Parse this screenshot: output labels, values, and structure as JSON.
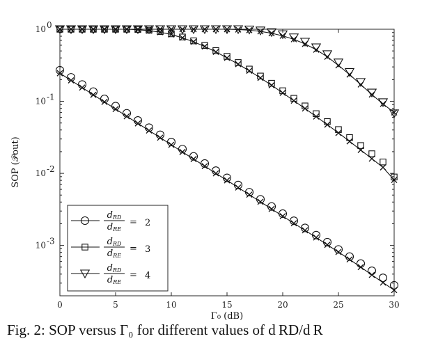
{
  "chart_data": {
    "type": "line",
    "xlabel": "Γ₀ (dB)",
    "ylabel": "SOP (𝒫out)",
    "xlim": [
      0,
      30
    ],
    "ylim": [
      0.0002,
      1
    ],
    "yscale": "log",
    "x_ticks": [
      0,
      5,
      10,
      15,
      20,
      25,
      30
    ],
    "y_ticks": [
      {
        "value": 1,
        "base": "10",
        "exp": "0"
      },
      {
        "value": 0.1,
        "base": "10",
        "exp": "-1"
      },
      {
        "value": 0.01,
        "base": "10",
        "exp": "-2"
      },
      {
        "value": 0.001,
        "base": "10",
        "exp": "-3"
      }
    ],
    "legend_position": "bottom-left",
    "x": [
      0,
      1,
      2,
      3,
      4,
      5,
      6,
      7,
      8,
      9,
      10,
      11,
      12,
      13,
      14,
      15,
      16,
      17,
      18,
      19,
      20,
      21,
      22,
      23,
      24,
      25,
      26,
      27,
      28,
      29,
      30
    ],
    "series": [
      {
        "legend": {
          "num": "RD",
          "den": "RE",
          "value": "2"
        },
        "marker": "circle",
        "analytical": [
          0.27,
          0.215,
          0.171,
          0.136,
          0.108,
          0.0858,
          0.0682,
          0.0542,
          0.0431,
          0.0343,
          0.0272,
          0.0217,
          0.0172,
          0.0137,
          0.0109,
          0.00866,
          0.00689,
          0.00548,
          0.00436,
          0.00347,
          0.00276,
          0.0022,
          0.00175,
          0.00139,
          0.00111,
          0.00088,
          0.0007,
          0.00056,
          0.000445,
          0.000355,
          0.00028
        ],
        "simulated": [
          0.245,
          0.195,
          0.155,
          0.123,
          0.098,
          0.078,
          0.062,
          0.0494,
          0.0393,
          0.0313,
          0.0249,
          0.0198,
          0.0158,
          0.0126,
          0.01,
          0.008,
          0.00636,
          0.00506,
          0.00403,
          0.00321,
          0.00255,
          0.00203,
          0.00162,
          0.00129,
          0.00102,
          0.00081,
          0.00064,
          0.0005,
          0.00039,
          0.000305,
          0.00024
        ]
      },
      {
        "legend": {
          "num": "RD",
          "den": "RE",
          "value": "3"
        },
        "marker": "square",
        "analytical": [
          1,
          1,
          1,
          1,
          1,
          1,
          1,
          0.995,
          0.97,
          0.93,
          0.865,
          0.78,
          0.69,
          0.595,
          0.505,
          0.42,
          0.345,
          0.28,
          0.224,
          0.178,
          0.14,
          0.11,
          0.0862,
          0.0673,
          0.0523,
          0.0405,
          0.0314,
          0.0243,
          0.0187,
          0.0144,
          0.0089
        ],
        "simulated": [
          1,
          1,
          1,
          1,
          1,
          1,
          1,
          0.985,
          0.955,
          0.91,
          0.845,
          0.76,
          0.67,
          0.575,
          0.485,
          0.4,
          0.328,
          0.265,
          0.211,
          0.167,
          0.131,
          0.102,
          0.0794,
          0.0615,
          0.0474,
          0.0364,
          0.0278,
          0.0211,
          0.016,
          0.0121,
          0.0081
        ]
      },
      {
        "legend": {
          "num": "RD",
          "den": "RE",
          "value": "4"
        },
        "marker": "triangle-down",
        "analytical": [
          1,
          1,
          1,
          1,
          1,
          1,
          1,
          1,
          1,
          1,
          1,
          1,
          1,
          1,
          1,
          1,
          1,
          0.99,
          0.96,
          0.91,
          0.85,
          0.77,
          0.67,
          0.56,
          0.45,
          0.345,
          0.255,
          0.185,
          0.132,
          0.097,
          0.068
        ],
        "simulated": [
          1,
          1,
          1,
          1,
          1,
          1,
          1,
          1,
          1,
          1,
          1,
          1,
          1,
          1,
          1,
          1,
          0.99,
          0.97,
          0.935,
          0.88,
          0.81,
          0.725,
          0.625,
          0.52,
          0.415,
          0.315,
          0.235,
          0.171,
          0.124,
          0.092,
          0.07
        ]
      }
    ]
  },
  "caption": "Fig. 2: SOP versus Γ₀ for different values of d RD/d R"
}
